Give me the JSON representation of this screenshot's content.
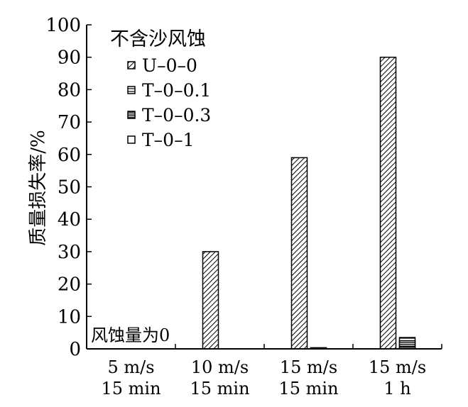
{
  "chart_data": {
    "type": "bar",
    "categories": [
      [
        "5 m/s",
        "15 min"
      ],
      [
        "10 m/s",
        "15 min"
      ],
      [
        "15 m/s",
        "15 min"
      ],
      [
        "15 m/s",
        "1 h"
      ]
    ],
    "series": [
      {
        "name": "U–0–0",
        "pattern": "diagonal",
        "values": [
          0,
          30,
          59,
          90
        ]
      },
      {
        "name": "T–0–0.1",
        "pattern": "horizontal",
        "values": [
          0,
          0,
          0.2,
          3.5
        ]
      },
      {
        "name": "T–0–0.3",
        "pattern": "horizontal-dense",
        "values": [
          0,
          0,
          0.1,
          2.5
        ]
      },
      {
        "name": "T–0–1",
        "pattern": "empty",
        "values": [
          0,
          0,
          0,
          0.5
        ]
      }
    ],
    "title": "",
    "legend_title": "不含沙风蚀",
    "legend_position": "top-left",
    "xlabel": "",
    "ylabel": "质量损失率/%",
    "ylim": [
      0,
      100
    ],
    "yticks": [
      0,
      10,
      20,
      30,
      40,
      50,
      60,
      70,
      80,
      90,
      100
    ],
    "grid": false,
    "annotation": "风蚀量为0"
  }
}
